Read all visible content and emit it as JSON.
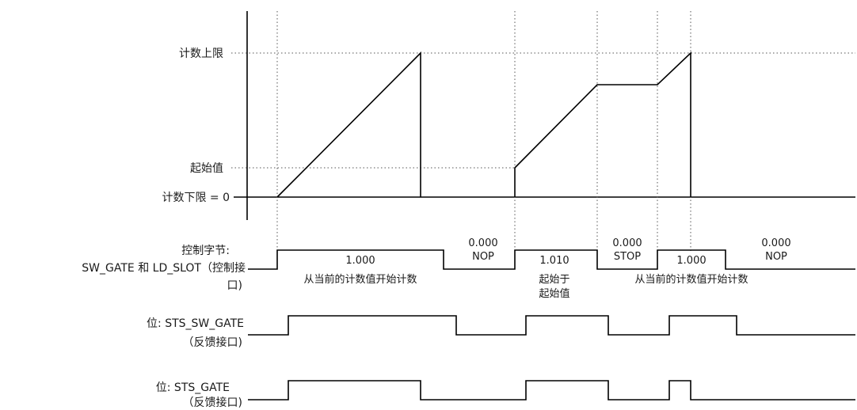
{
  "y_labels": {
    "upper_limit": "计数上限",
    "start_value": "起始值",
    "lower_limit": "计数下限 = 0"
  },
  "control_byte": {
    "label_line1": "控制字节:",
    "label_line2": "SW_GATE 和 LD_SLOT（控制接",
    "label_line3": "口)",
    "segments": [
      {
        "code": "1.000",
        "mnemonic": "",
        "desc1": "从当前的计数值开始计数",
        "desc2": ""
      },
      {
        "code": "0.000",
        "mnemonic": "NOP",
        "desc1": "",
        "desc2": ""
      },
      {
        "code": "1.010",
        "mnemonic": "",
        "desc1": "起始于",
        "desc2": "起始值"
      },
      {
        "code": "0.000",
        "mnemonic": "STOP",
        "desc1": "",
        "desc2": ""
      },
      {
        "code": "1.000",
        "mnemonic": "",
        "desc1": "从当前的计数值开始计数",
        "desc2": ""
      },
      {
        "code": "0.000",
        "mnemonic": "NOP",
        "desc1": "",
        "desc2": ""
      }
    ]
  },
  "sts_sw_gate": {
    "label": "位: STS_SW_GATE",
    "sub": "（反馈接口)"
  },
  "sts_gate": {
    "label": "位: STS_GATE",
    "sub": "（反馈接口)"
  }
}
